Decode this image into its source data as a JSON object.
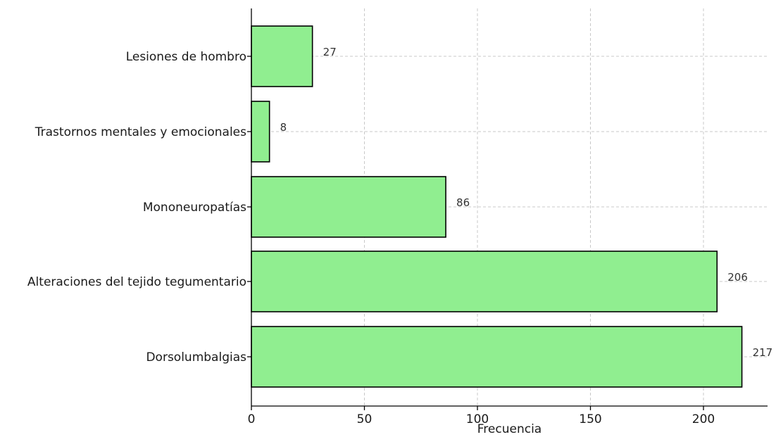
{
  "chart_data": {
    "type": "bar",
    "orientation": "horizontal",
    "categories": [
      "Dorsolumbalgias",
      "Alteraciones del tejido tegumentario",
      "Mononeuropatías",
      "Trastornos mentales y emocionales",
      "Lesiones de hombro"
    ],
    "values": [
      217,
      206,
      86,
      8,
      27
    ],
    "xlabel": "Frecuencia",
    "ylabel": "",
    "title": "",
    "xlim": [
      0,
      228
    ],
    "xticks": [
      0,
      50,
      100,
      150,
      200
    ],
    "grid": true,
    "bar_color": "#90ee90",
    "bar_edge_color": "#000000",
    "show_value_labels": true
  }
}
